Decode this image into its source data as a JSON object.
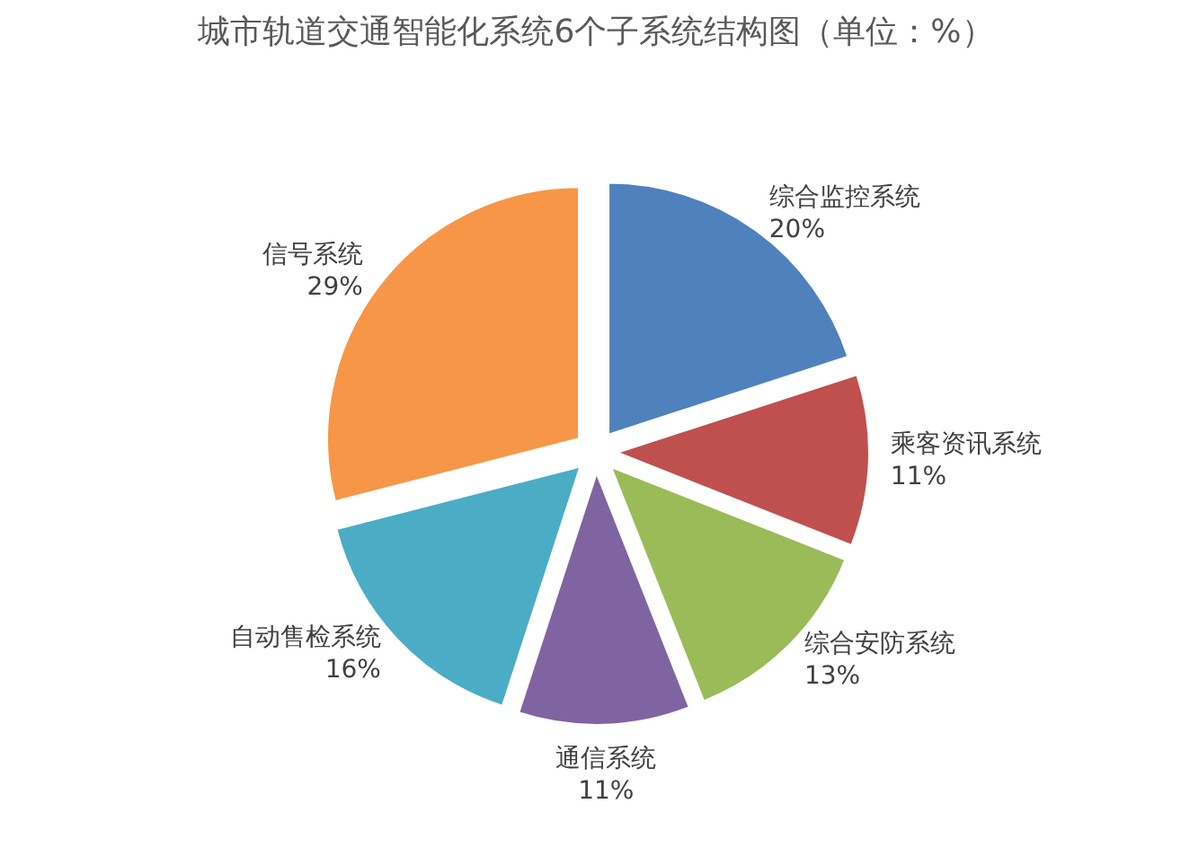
{
  "chart_data": {
    "type": "pie",
    "title": "城市轨道交通智能化系统6个子系统结构图（单位：%）",
    "categories": [
      "综合监控系统",
      "乘客资讯系统",
      "综合安防系统",
      "通信系统",
      "自动售检系统",
      "信号系统"
    ],
    "values": [
      20,
      11,
      13,
      11,
      16,
      29
    ],
    "colors": [
      "#4f81bd",
      "#c0504d",
      "#9bbb59",
      "#8064a2",
      "#4bacc6",
      "#f79646"
    ],
    "value_labels": [
      "20%",
      "11%",
      "13%",
      "11%",
      "16%",
      "29%"
    ]
  }
}
